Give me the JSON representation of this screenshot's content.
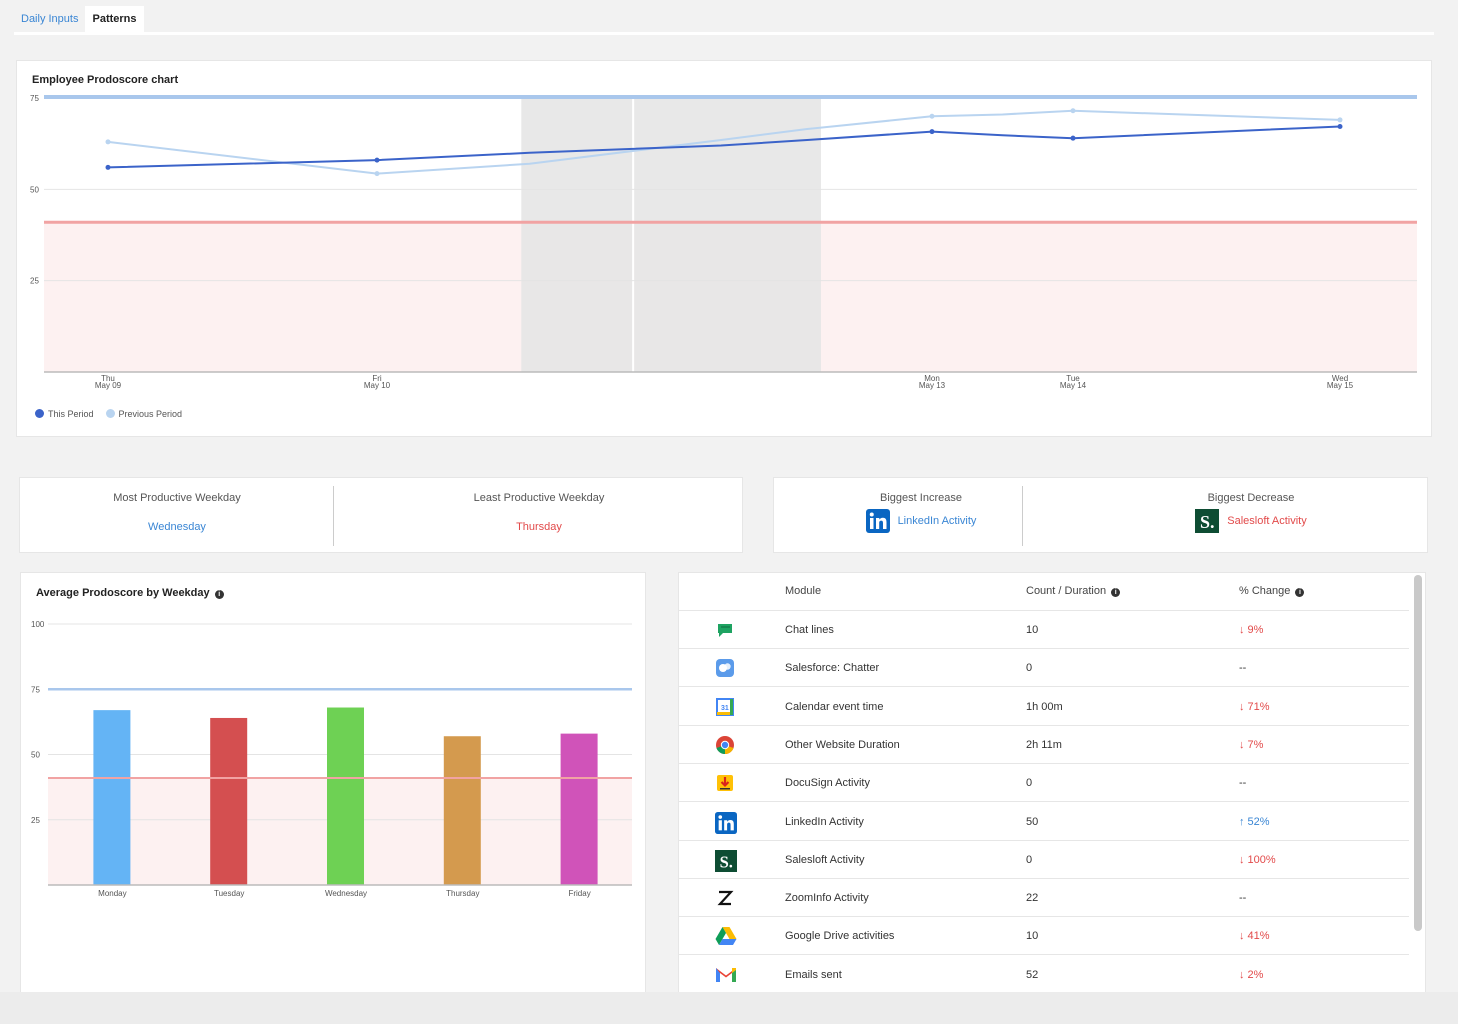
{
  "tabs": [
    {
      "label": "Daily Inputs"
    },
    {
      "label": "Patterns"
    }
  ],
  "line_chart_title": "Employee Prodoscore chart",
  "legend": {
    "this_period": "This Period",
    "previous_period": "Previous Period"
  },
  "stats": {
    "most_productive_label": "Most Productive Weekday",
    "most_productive_value": "Wednesday",
    "least_productive_label": "Least Productive Weekday",
    "least_productive_value": "Thursday",
    "biggest_increase_label": "Biggest Increase",
    "biggest_increase_value": "LinkedIn Activity",
    "biggest_decrease_label": "Biggest Decrease",
    "biggest_decrease_value": "Salesloft Activity"
  },
  "bar_chart_title": "Average Prodoscore by Weekday",
  "table": {
    "headers": {
      "module": "Module",
      "count": "Count / Duration",
      "change": "% Change"
    },
    "rows": [
      {
        "icon": "chat-icon",
        "module": "Chat lines",
        "count": "10",
        "change": "9%",
        "dir": "down"
      },
      {
        "icon": "chatter-icon",
        "module": "Salesforce: Chatter",
        "count": "0",
        "change": "--",
        "dir": "none"
      },
      {
        "icon": "calendar-icon",
        "module": "Calendar event time",
        "count": "1h 00m",
        "change": "71%",
        "dir": "down"
      },
      {
        "icon": "chrome-icon",
        "module": "Other Website Duration",
        "count": "2h 11m",
        "change": "7%",
        "dir": "down"
      },
      {
        "icon": "docusign-icon",
        "module": "DocuSign Activity",
        "count": "0",
        "change": "--",
        "dir": "none"
      },
      {
        "icon": "linkedin-icon",
        "module": "LinkedIn Activity",
        "count": "50",
        "change": "52%",
        "dir": "up"
      },
      {
        "icon": "salesloft-icon",
        "module": "Salesloft Activity",
        "count": "0",
        "change": "100%",
        "dir": "down"
      },
      {
        "icon": "zoominfo-icon",
        "module": "ZoomInfo Activity",
        "count": "22",
        "change": "--",
        "dir": "none"
      },
      {
        "icon": "google-drive-icon",
        "module": "Google Drive activities",
        "count": "10",
        "change": "41%",
        "dir": "down"
      },
      {
        "icon": "gmail-icon",
        "module": "Emails sent",
        "count": "52",
        "change": "2%",
        "dir": "down"
      }
    ]
  },
  "colors": {
    "this_period": "#3b63c9",
    "previous_period": "#b9d4f0",
    "target_line": "#a9c7ec",
    "threshold_line": "#f1a3a3",
    "threshold_fill": "#fdf1f1",
    "highlight_band": "#e6e6e6",
    "up": "#3a86d4",
    "down": "#e24a4a"
  },
  "chart_data": [
    {
      "type": "line",
      "title": "Employee Prodoscore chart",
      "x": [
        [
          "Thu",
          "May 09"
        ],
        [
          "Fri",
          "May 10"
        ],
        [
          "Mon",
          "May 13"
        ],
        [
          "Tue",
          "May 14"
        ],
        [
          "Wed",
          "May 15"
        ]
      ],
      "yticks": [
        25,
        50,
        75
      ],
      "ylim": [
        0,
        75
      ],
      "target": 75,
      "threshold": 41,
      "series": [
        {
          "name": "This Period",
          "points": [
            [
              0,
              56
            ],
            [
              1,
              58
            ],
            [
              1.55,
              60
            ],
            [
              2.24,
              62
            ],
            [
              2.55,
              63.5
            ],
            [
              3,
              65.8
            ],
            [
              3.25,
              64.8
            ],
            [
              3.5,
              64
            ],
            [
              4.5,
              67.2
            ]
          ]
        },
        {
          "name": "Previous Period",
          "points": [
            [
              0,
              63
            ],
            [
              1,
              54.3
            ],
            [
              1.55,
              57
            ],
            [
              2.24,
              63.5
            ],
            [
              2.55,
              66.5
            ],
            [
              3,
              70
            ],
            [
              3.25,
              70.5
            ],
            [
              3.5,
              71.5
            ],
            [
              4.5,
              69
            ]
          ]
        }
      ],
      "highlight": [
        1.52,
        2.6
      ],
      "legend": "bottom-left"
    },
    {
      "type": "bar",
      "title": "Average Prodoscore by Weekday",
      "categories": [
        "Monday",
        "Tuesday",
        "Wednesday",
        "Thursday",
        "Friday"
      ],
      "values": [
        67,
        64,
        68,
        57,
        58
      ],
      "colors": [
        "#64b4f5",
        "#d44f50",
        "#6ed154",
        "#d49a4e",
        "#d053b9"
      ],
      "yticks": [
        25,
        50,
        75,
        100
      ],
      "ylim": [
        0,
        100
      ],
      "target": 75,
      "threshold": 41
    }
  ]
}
